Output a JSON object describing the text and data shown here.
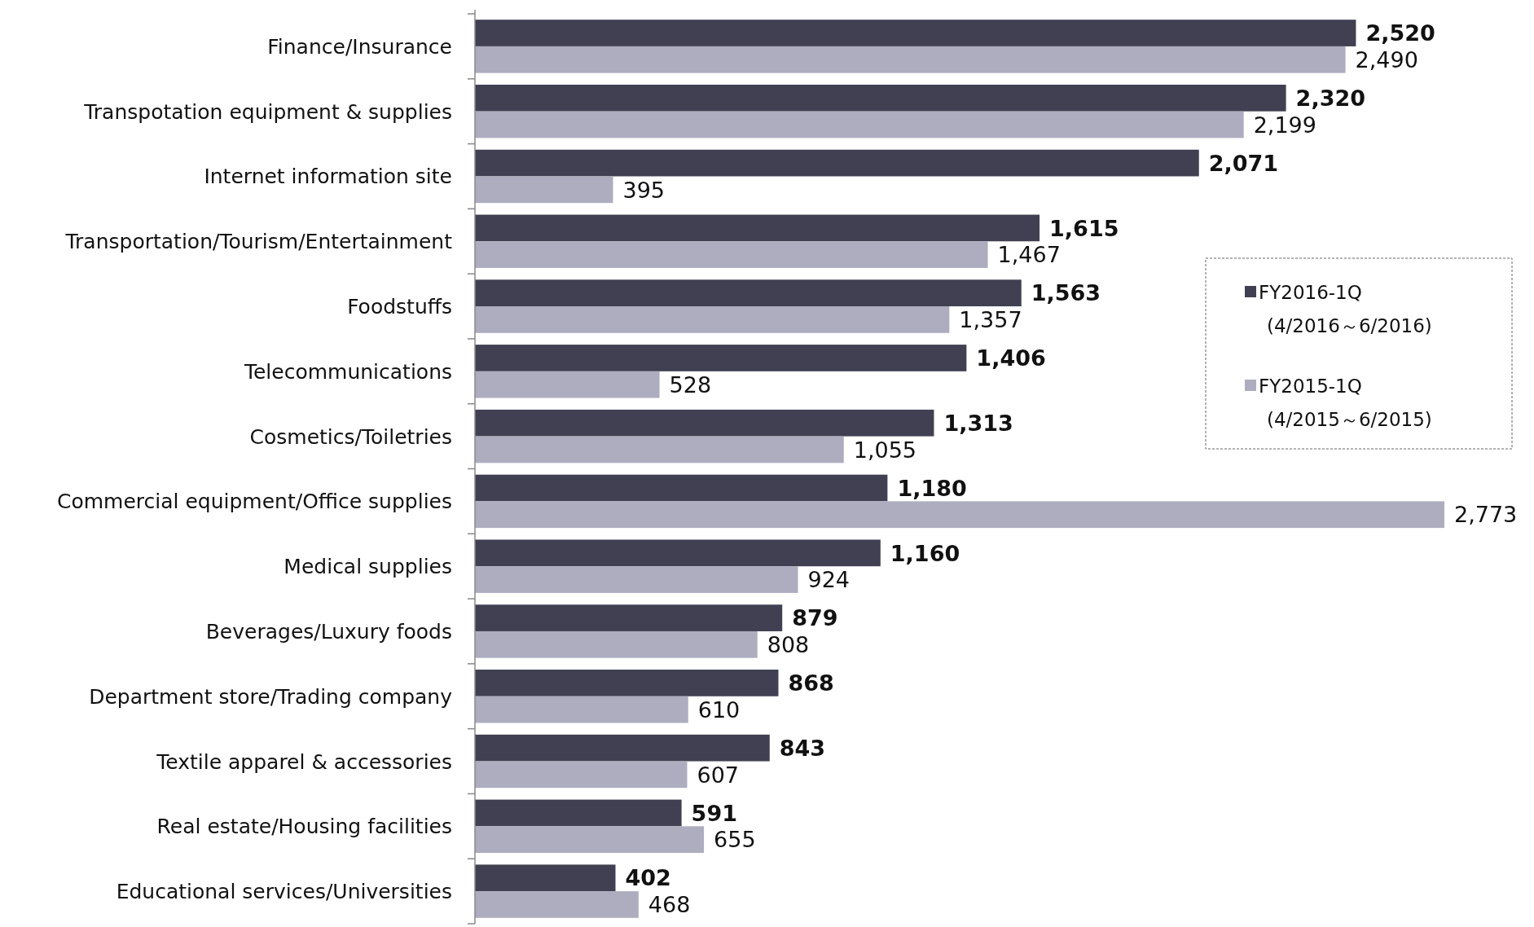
{
  "chart_data": {
    "type": "bar",
    "orientation": "horizontal",
    "categories": [
      "Finance/Insurance",
      "Transpotation equipment & supplies",
      "Internet information site",
      "Transportation/Tourism/Entertainment",
      "Foodstuffs",
      "Telecommunications",
      "Cosmetics/Toiletries",
      "Commercial equipment/Office supplies",
      "Medical supplies",
      "Beverages/Luxury foods",
      "Department store/Trading company",
      "Textile apparel & accessories",
      "Real estate/Housing facilities",
      "Educational services/Universities"
    ],
    "series": [
      {
        "name": "FY2016-1Q\n(4/2016～6/2016)",
        "color": "#404052",
        "values": [
          2520,
          2320,
          2071,
          1615,
          1563,
          1406,
          1313,
          1180,
          1160,
          879,
          868,
          843,
          591,
          402
        ],
        "value_labels": [
          "2,520",
          "2,320",
          "2,071",
          "1,615",
          "1,563",
          "1,406",
          "1,313",
          "1,180",
          "1,160",
          "879",
          "868",
          "843",
          "591",
          "402"
        ]
      },
      {
        "name": "FY2015-1Q\n(4/2015～6/2015)",
        "color": "#adadbf",
        "values": [
          2490,
          2199,
          395,
          1467,
          1357,
          528,
          1055,
          2773,
          924,
          808,
          610,
          607,
          655,
          468
        ],
        "value_labels": [
          "2,490",
          "2,199",
          "395",
          "1,467",
          "1,357",
          "528",
          "1,055",
          "2,773",
          "924",
          "808",
          "610",
          "607",
          "655",
          "468"
        ]
      }
    ],
    "legend": "right"
  }
}
